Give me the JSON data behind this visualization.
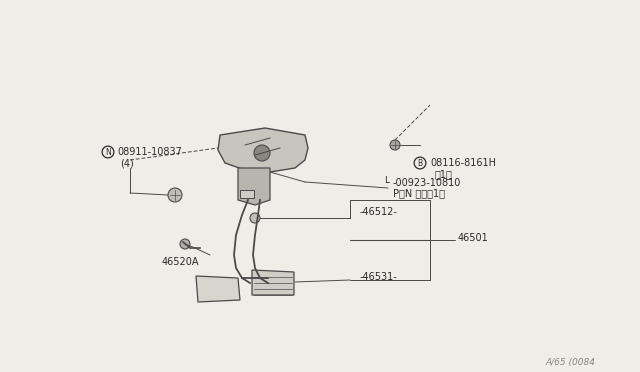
{
  "bg_color": "#f0ede8",
  "line_color": "#4a4a4a",
  "text_color": "#2a2a2a",
  "watermark": "A/65 (0084",
  "label_N": "08911-10837",
  "label_N2": "(4)",
  "label_B": "08116-8161H",
  "label_B2": "（1）",
  "label_pin1": "-00923-10810",
  "label_pin2": "P）N ピン（1）",
  "label_46512": "46512",
  "label_46501": "46501",
  "label_46531": "46531",
  "label_46520A": "46520A",
  "assembly_color": "#c8c4be",
  "assembly_outline": "#4a4a4a"
}
